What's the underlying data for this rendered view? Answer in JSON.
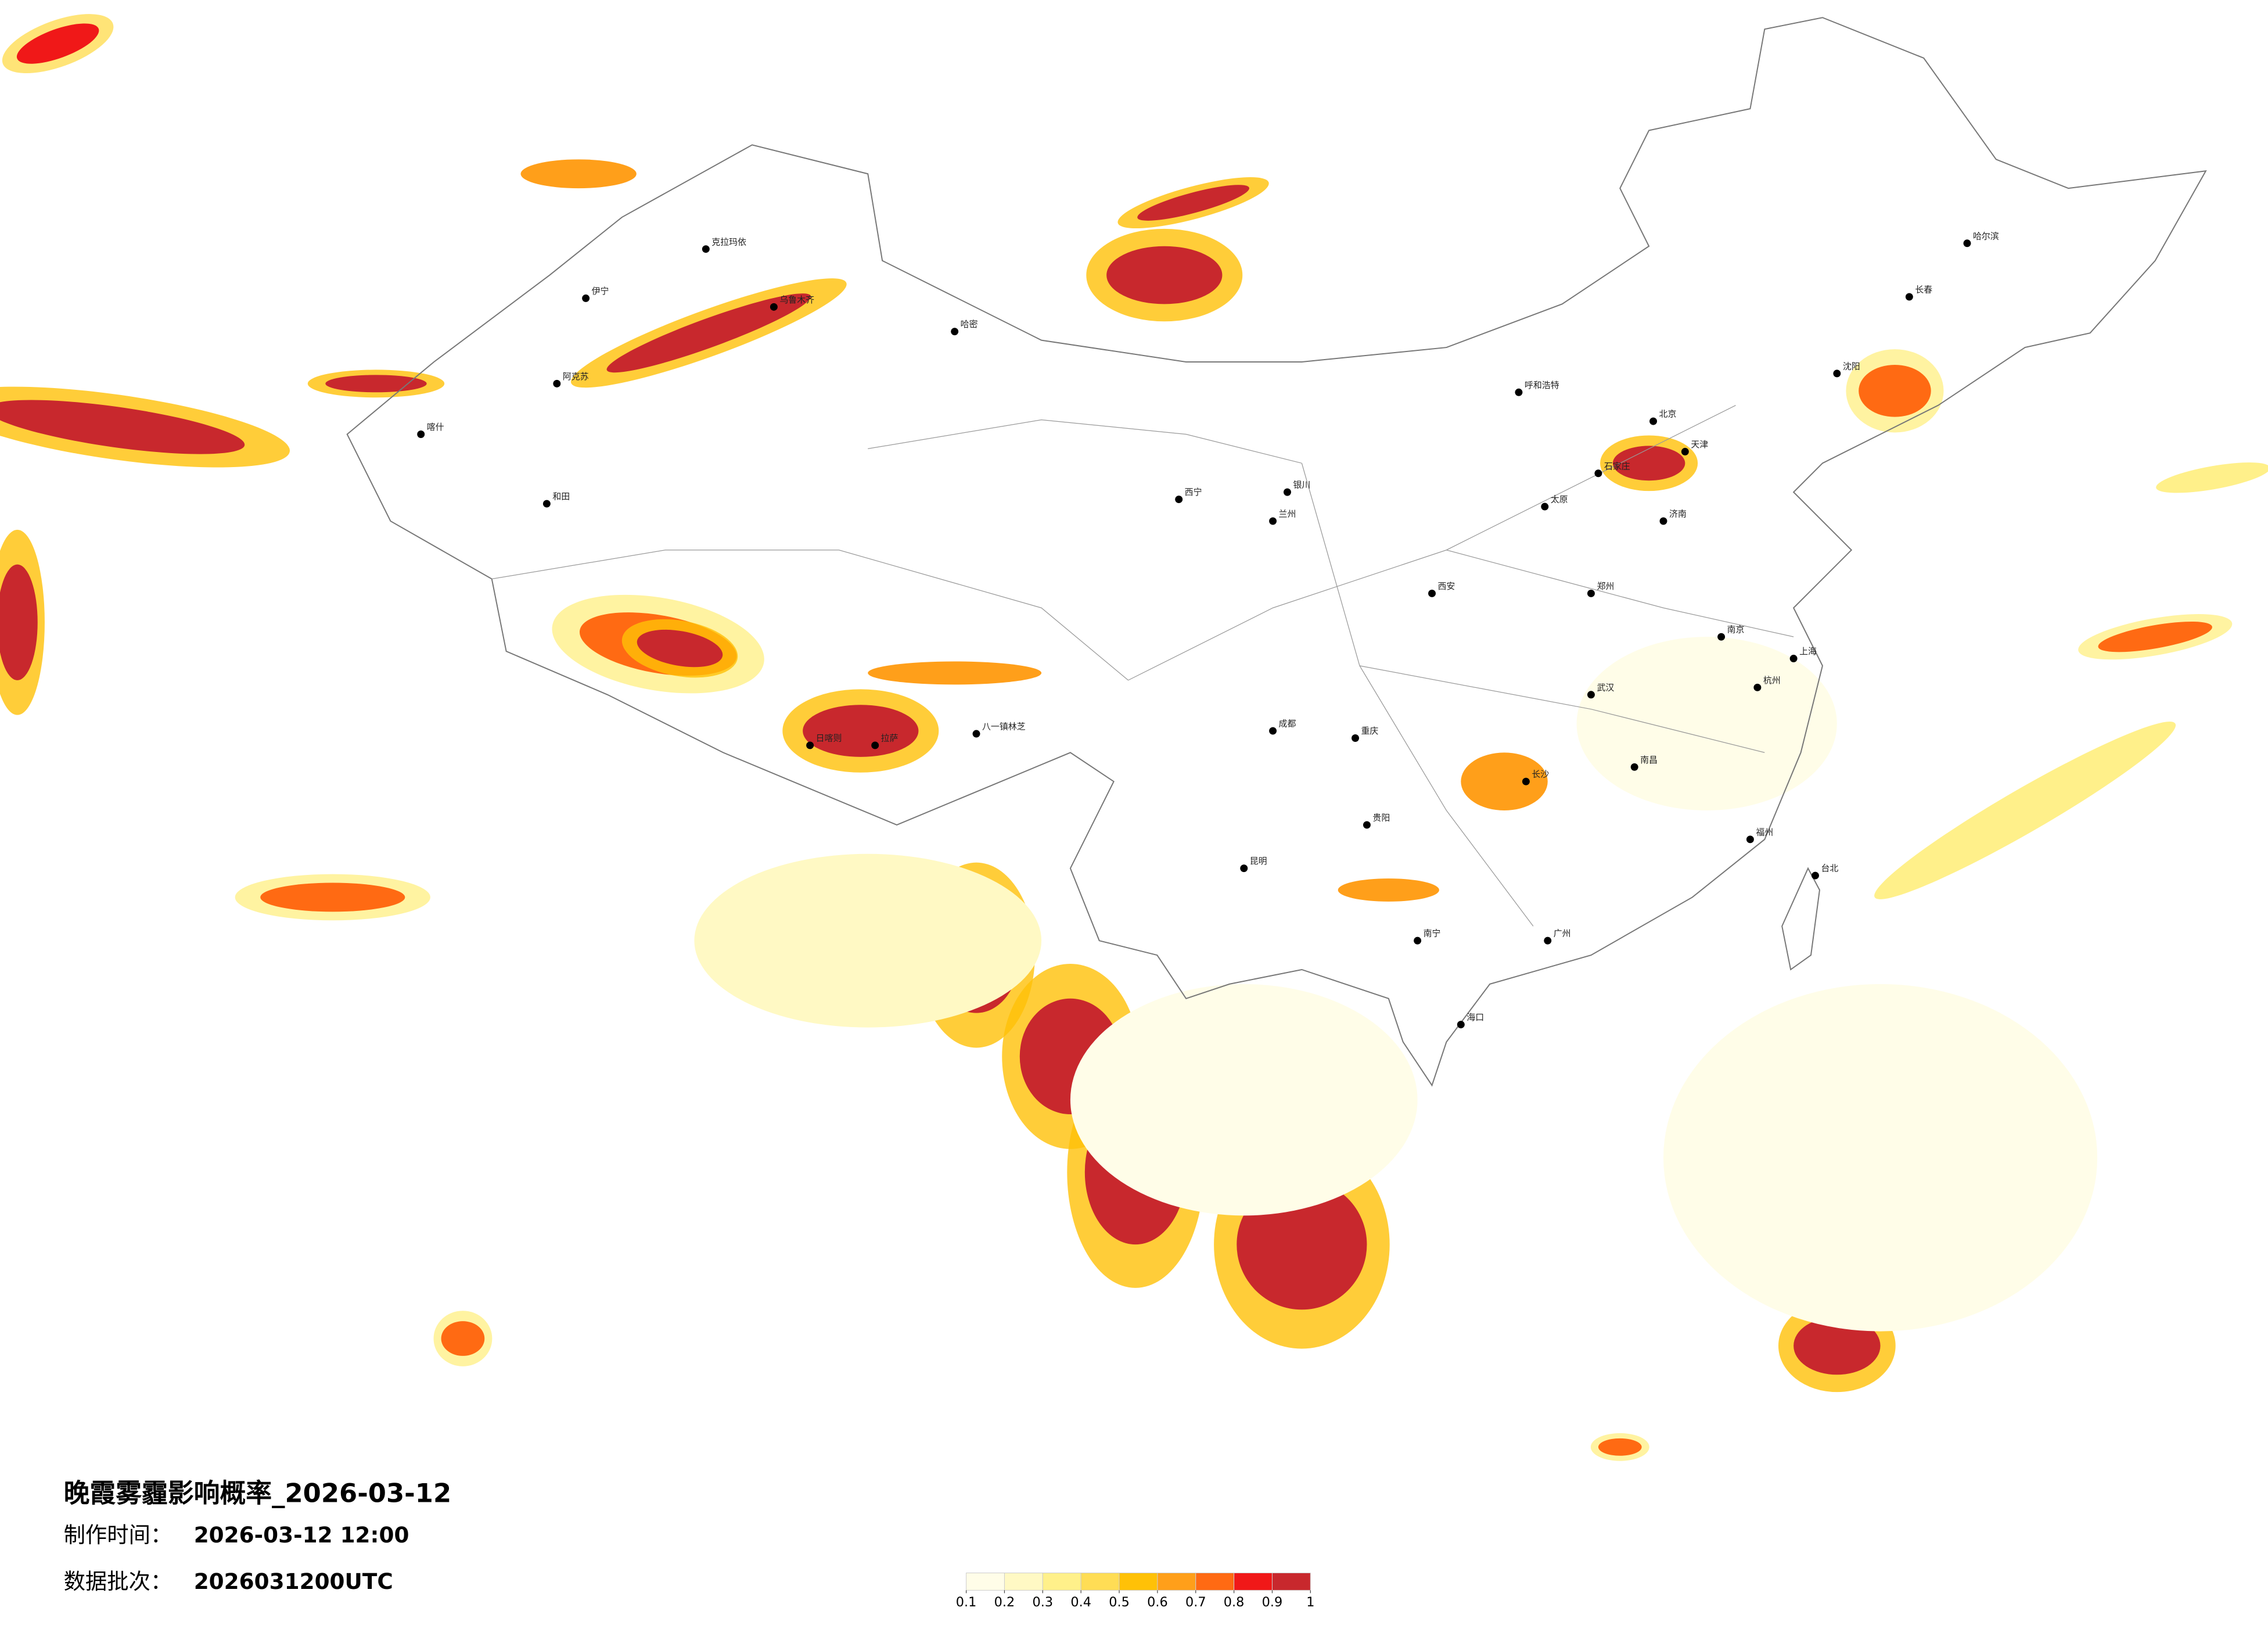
{
  "title": "晚霞雾霾影响概率_2026-03-12",
  "production_time": {
    "label": "制作时间：",
    "value": "2026-03-12 12:00"
  },
  "data_batch": {
    "label": "数据批次：",
    "value": "2026031200UTC"
  },
  "legend": {
    "colors": [
      "#fffde8",
      "#fff9c4",
      "#fff08a",
      "#ffdd55",
      "#ffc107",
      "#ff9f1a",
      "#ff6a13",
      "#f01818",
      "#c8282d"
    ],
    "ticks": [
      0.1,
      0.2,
      0.3,
      0.4,
      0.5,
      0.6,
      0.7,
      0.8,
      0.9,
      1
    ]
  },
  "cities": [
    "乌鲁木齐",
    "克拉玛依",
    "伊宁",
    "阿克苏",
    "喀什",
    "和田",
    "哈密",
    "拉萨",
    "日喀则",
    "八一镇林芝",
    "西宁",
    "兰州",
    "银川",
    "呼和浩特",
    "北京",
    "天津",
    "石家庄",
    "太原",
    "济南",
    "郑州",
    "西安",
    "成都",
    "重庆",
    "贵阳",
    "昆明",
    "南宁",
    "广州",
    "长沙",
    "武汉",
    "南昌",
    "福州",
    "杭州",
    "上海",
    "南京",
    "沈阳",
    "长春",
    "哈尔滨",
    "台北",
    "海口"
  ]
}
